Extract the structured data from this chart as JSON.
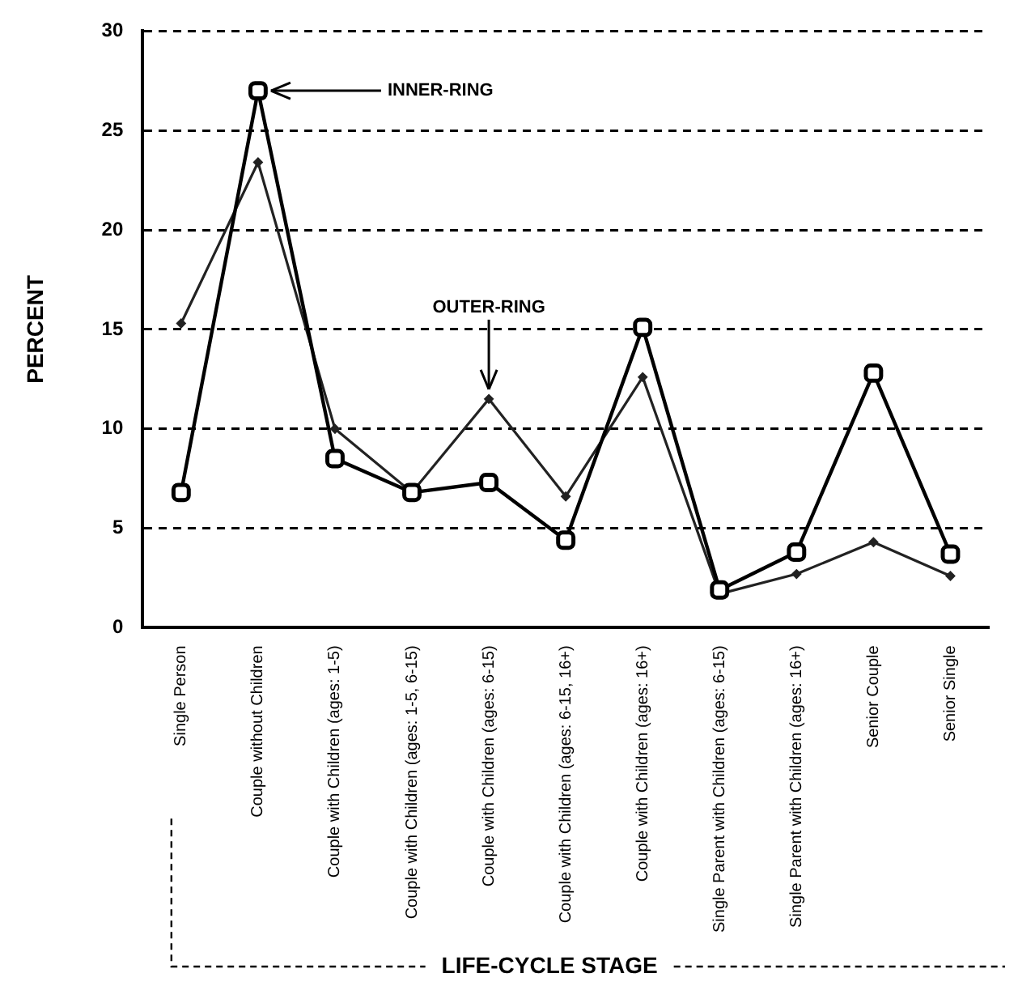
{
  "chart_data": {
    "type": "line",
    "xlabel": "LIFE-CYCLE STAGE",
    "ylabel": "PERCENT",
    "categories": [
      "Single Person",
      "Couple without Children",
      "Couple with Children (ages: 1-5)",
      "Couple with Children (ages: 1-5, 6-15)",
      "Couple with Children (ages: 6-15)",
      "Couple with Children (ages: 6-15, 16+)",
      "Couple with Children (ages: 16+)",
      "Single Parent with Children (ages: 6-15)",
      "Single Parent with Children (ages: 16+)",
      "Senior Couple",
      "Senior Single"
    ],
    "series": [
      {
        "name": "INNER-RING",
        "color": "#000000",
        "marker": "square",
        "values": [
          6.8,
          27,
          8.5,
          6.8,
          7.3,
          4.4,
          15.1,
          1.9,
          3.8,
          12.8,
          3.7
        ]
      },
      {
        "name": "OUTER-RING",
        "color": "#222222",
        "marker": "diamond",
        "values": [
          15.3,
          23.4,
          10,
          6.8,
          11.5,
          6.6,
          12.6,
          1.7,
          2.7,
          4.3,
          2.6
        ]
      }
    ],
    "ylim": [
      0,
      30
    ],
    "yticks": [
      0,
      5,
      10,
      15,
      20,
      25,
      30
    ],
    "grid": "y",
    "legend": false
  }
}
